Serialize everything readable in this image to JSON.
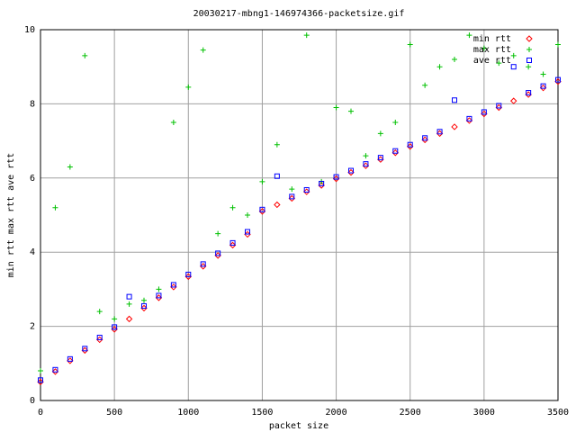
{
  "chart_data": {
    "type": "scatter",
    "title": "20030217-mbng1-146974366-packetsize.gif",
    "x_label": "packet size",
    "y_label": "min rtt max rtt ave rtt",
    "x": [
      0,
      100,
      200,
      300,
      400,
      500,
      600,
      700,
      800,
      900,
      1000,
      1100,
      1200,
      1300,
      1400,
      1500,
      1600,
      1700,
      1800,
      1900,
      2000,
      2100,
      2200,
      2300,
      2400,
      2500,
      2600,
      2700,
      2800,
      2900,
      3000,
      3100,
      3200,
      3300,
      3400,
      3500
    ],
    "series": [
      {
        "name": "min rtt",
        "color": "#ff0000",
        "marker": "diamond",
        "values": [
          0.5,
          0.78,
          1.07,
          1.35,
          1.64,
          1.92,
          2.2,
          2.49,
          2.77,
          3.06,
          3.34,
          3.62,
          3.91,
          4.19,
          4.48,
          5.1,
          5.28,
          5.45,
          5.63,
          5.8,
          5.98,
          6.15,
          6.33,
          6.5,
          6.68,
          6.85,
          7.03,
          7.2,
          7.38,
          7.55,
          7.73,
          7.9,
          8.08,
          8.25,
          8.43,
          8.6
        ]
      },
      {
        "name": "max rtt",
        "color": "#00c000",
        "marker": "plus",
        "values": [
          0.8,
          5.2,
          6.3,
          9.3,
          2.4,
          2.2,
          2.6,
          2.7,
          3.0,
          7.5,
          8.45,
          9.45,
          4.5,
          5.2,
          5.0,
          5.9,
          6.9,
          5.7,
          9.85,
          5.9,
          7.9,
          7.8,
          6.6,
          7.2,
          7.5,
          9.6,
          8.5,
          9.0,
          9.2,
          9.85,
          9.5,
          9.1,
          9.3,
          9.0,
          8.8,
          9.6
        ]
      },
      {
        "name": "ave rtt",
        "color": "#0000ff",
        "marker": "square",
        "values": [
          0.55,
          0.83,
          1.12,
          1.4,
          1.7,
          1.98,
          2.8,
          2.55,
          2.83,
          3.12,
          3.4,
          3.68,
          3.97,
          4.25,
          4.55,
          5.15,
          6.05,
          5.5,
          5.68,
          5.85,
          6.03,
          6.2,
          6.38,
          6.55,
          6.73,
          6.9,
          7.08,
          7.25,
          8.1,
          7.6,
          7.78,
          7.95,
          9.0,
          8.3,
          8.48,
          8.65
        ]
      }
    ],
    "xlim": [
      0,
      3500
    ],
    "xticks": [
      0,
      500,
      1000,
      1500,
      2000,
      2500,
      3000,
      3500
    ],
    "ylim": [
      0,
      10
    ],
    "yticks": [
      0,
      2,
      4,
      6,
      8,
      10
    ],
    "grid": true,
    "legend": "top-right"
  }
}
